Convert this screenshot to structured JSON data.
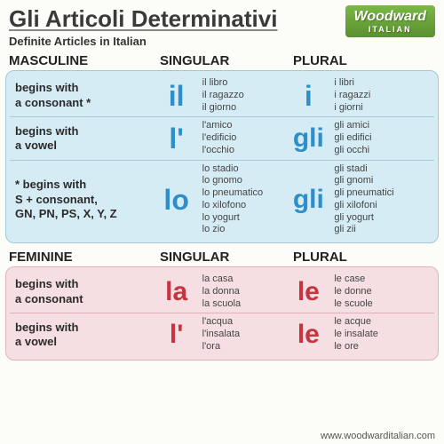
{
  "header": {
    "title": "Gli Articoli Determinativi",
    "subtitle": "Definite Articles in Italian",
    "logo_main": "Woodward",
    "logo_sub": "ITALIAN"
  },
  "columns": {
    "singular": "SINGULAR",
    "plural": "PLURAL"
  },
  "masculine": {
    "label": "MASCULINE",
    "rows": [
      {
        "desc_l1": "begins with",
        "desc_l2": "a consonant *",
        "sing_art": "il",
        "sing_size": "32px",
        "sing_ex": "il libro\nil ragazzo\nil giorno",
        "plur_art": "i",
        "plur_size": "32px",
        "plur_ex": "i libri\ni ragazzi\ni giorni"
      },
      {
        "desc_l1": "begins with",
        "desc_l2": "a vowel",
        "sing_art": "l'",
        "sing_size": "32px",
        "sing_ex": "l'amico\nl'edificio\nl'occhio",
        "plur_art": "gli",
        "plur_size": "30px",
        "plur_ex": "gli amici\ngli edifici\ngli occhi"
      },
      {
        "desc_l1": "* begins with",
        "desc_l2": "S + consonant,",
        "desc_l3": "GN, PN, PS, X, Y, Z",
        "sing_art": "lo",
        "sing_size": "32px",
        "sing_ex": "lo stadio\nlo gnomo\nlo pneumatico\nlo xilofono\nlo yogurt\nlo zio",
        "plur_art": "gli",
        "plur_size": "30px",
        "plur_ex": "gli stadi\ngli gnomi\ngli pneumatici\ngli xilofoni\ngli yogurt\ngli zii"
      }
    ]
  },
  "feminine": {
    "label": "FEMININE",
    "rows": [
      {
        "desc_l1": "begins with",
        "desc_l2": "a consonant",
        "sing_art": "la",
        "sing_size": "30px",
        "sing_ex": "la casa\nla donna\nla scuola",
        "plur_art": "le",
        "plur_size": "30px",
        "plur_ex": "le case\nle donne\nle scuole"
      },
      {
        "desc_l1": "begins with",
        "desc_l2": "a vowel",
        "sing_art": "l'",
        "sing_size": "30px",
        "sing_ex": "l'acqua\nl'insalata\nl'ora",
        "plur_art": "le",
        "plur_size": "30px",
        "plur_ex": "le acque\nle insalate\nle ore"
      }
    ]
  },
  "footer": "www.woodwarditalian.com",
  "colors": {
    "masc_article": "#2c8fc9",
    "fem_article": "#c6353f",
    "masc_panel_bg": "#d6ecf4",
    "fem_panel_bg": "#f5dfe2"
  }
}
